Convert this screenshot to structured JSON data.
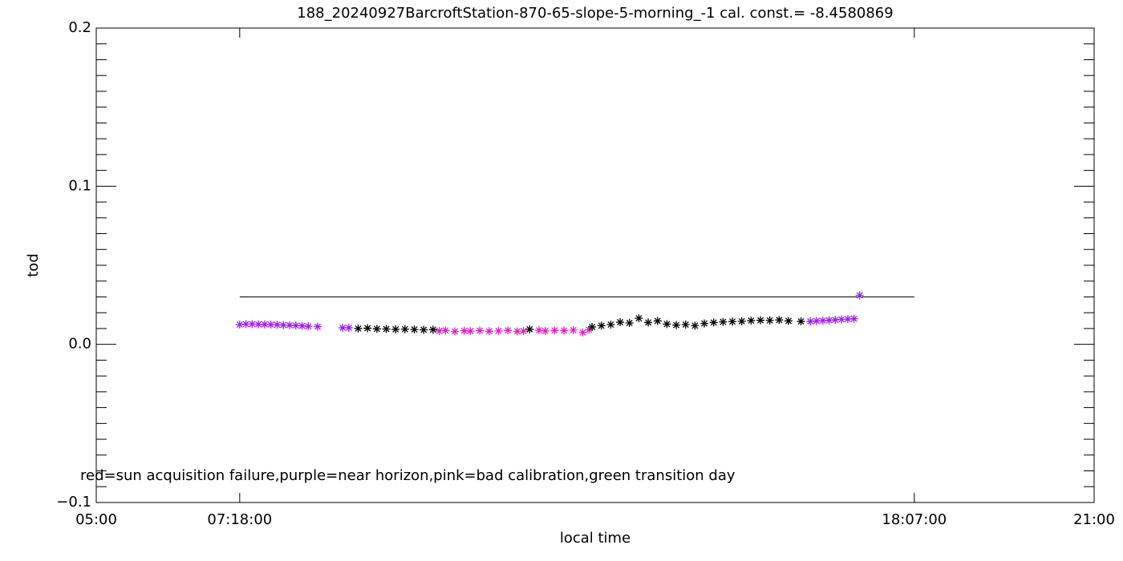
{
  "chart_data": {
    "type": "scatter",
    "title": "188_20240927BarcroftStation-870-65-slope-5-morning_-1 cal. const.= -8.4580869",
    "x_label": "local time",
    "y_label": "tod",
    "annotation": "red=sun acquisition failure,purple=near horizon,pink=bad calibration,green transition day",
    "xlim": [
      5,
      21
    ],
    "xticks": [
      {
        "value": 5,
        "label": "05:00"
      },
      {
        "value": 7.3,
        "label": "07:18:00"
      },
      {
        "value": 18.1167,
        "label": "18:07:00"
      },
      {
        "value": 21,
        "label": "21:00"
      }
    ],
    "ylim": [
      -0.1,
      0.2
    ],
    "yticks": [
      {
        "value": -0.1,
        "label": "−0.1"
      },
      {
        "value": 0,
        "label": "0.0"
      },
      0.1,
      0.2
    ],
    "yminor_ticks": [
      -0.09,
      -0.08,
      -0.07,
      -0.06,
      -0.05,
      -0.04,
      -0.03,
      -0.02,
      -0.01,
      0.01,
      0.02,
      0.03,
      0.04,
      0.05,
      0.06,
      0.07,
      0.08,
      0.09,
      0.11,
      0.12,
      0.13,
      0.14,
      0.15,
      0.16,
      0.17,
      0.18,
      0.19
    ],
    "reference_line": {
      "x": [
        7.3,
        18.1167
      ],
      "y": [
        0.03,
        0.03
      ],
      "color": "#000000"
    },
    "series": [
      {
        "color": "#a020f0",
        "x": [
          7.3,
          7.4,
          7.5,
          7.6,
          7.7,
          7.8,
          7.9,
          8.0,
          8.1,
          8.2,
          8.3,
          8.4,
          8.55,
          8.95,
          9.05,
          16.45,
          16.55,
          16.65,
          16.75,
          16.85,
          16.95,
          17.05,
          17.15,
          17.24
        ],
        "values": [
          0.0125,
          0.0128,
          0.0128,
          0.0127,
          0.0126,
          0.0125,
          0.0124,
          0.0122,
          0.0121,
          0.0119,
          0.0117,
          0.0114,
          0.0112,
          0.0105,
          0.0105,
          0.0145,
          0.0148,
          0.015,
          0.0152,
          0.0155,
          0.0158,
          0.016,
          0.0162,
          0.031
        ]
      },
      {
        "color": "#e020c0",
        "x": [
          10.5,
          10.6,
          10.75,
          10.9,
          11.0,
          11.15,
          11.3,
          11.45,
          11.6,
          11.75,
          11.85,
          12.1,
          12.2,
          12.35,
          12.5,
          12.65,
          12.8,
          12.9
        ],
        "values": [
          0.0085,
          0.0088,
          0.0082,
          0.0086,
          0.0084,
          0.0087,
          0.0083,
          0.0085,
          0.0088,
          0.0082,
          0.0084,
          0.0089,
          0.0085,
          0.0088,
          0.0087,
          0.009,
          0.0075,
          0.0092
        ]
      },
      {
        "color": "#000000",
        "x": [
          9.2,
          9.35,
          9.5,
          9.65,
          9.8,
          9.95,
          10.1,
          10.25,
          10.4,
          11.95,
          12.95,
          13.1,
          13.25,
          13.4,
          13.55,
          13.7,
          13.85,
          14.0,
          14.15,
          14.3,
          14.45,
          14.6,
          14.75,
          14.9,
          15.05,
          15.2,
          15.35,
          15.5,
          15.65,
          15.8,
          15.95,
          16.1,
          16.3
        ],
        "values": [
          0.01,
          0.0102,
          0.0098,
          0.0097,
          0.0095,
          0.0096,
          0.0094,
          0.0092,
          0.0093,
          0.0095,
          0.011,
          0.0118,
          0.0125,
          0.014,
          0.0135,
          0.0165,
          0.0138,
          0.0148,
          0.0128,
          0.0122,
          0.0125,
          0.0118,
          0.0132,
          0.0138,
          0.0142,
          0.0144,
          0.0146,
          0.015,
          0.0152,
          0.0151,
          0.0154,
          0.0148,
          0.0145
        ]
      }
    ]
  }
}
